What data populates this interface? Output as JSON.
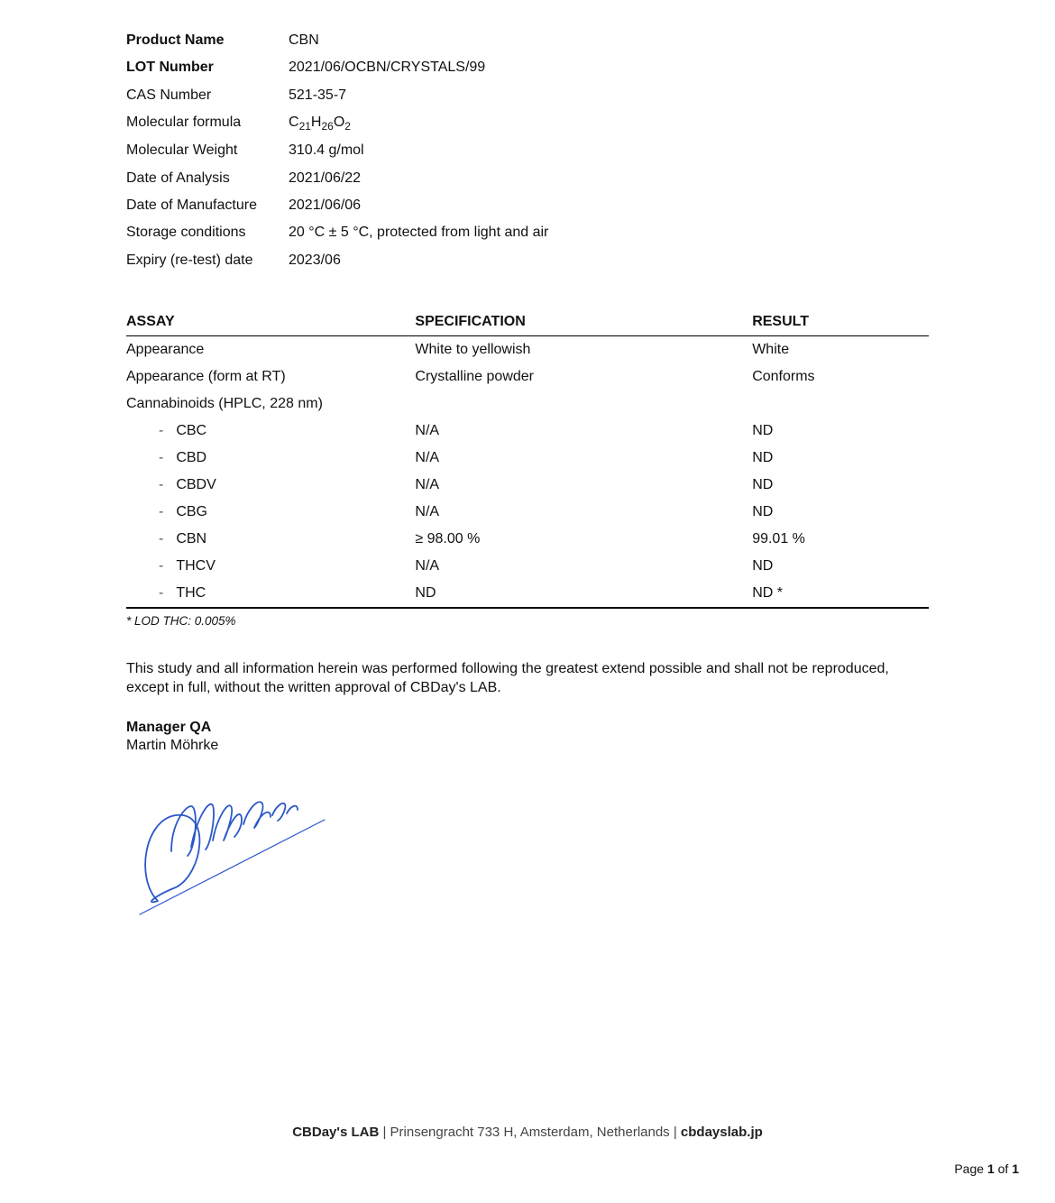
{
  "info": [
    {
      "label": "Product Name",
      "value": "CBN",
      "bold": true
    },
    {
      "label": "LOT Number",
      "value": "2021/06/OCBN/CRYSTALS/99",
      "bold": true
    },
    {
      "label": "CAS Number",
      "value": "521-35-7",
      "bold": false
    },
    {
      "label": "Molecular formula",
      "value": "C21H26O2",
      "bold": false,
      "formula": true
    },
    {
      "label": "Molecular Weight",
      "value": "310.4 g/mol",
      "bold": false
    },
    {
      "label": "Date of Analysis",
      "value": "2021/06/22",
      "bold": false
    },
    {
      "label": "Date of Manufacture",
      "value": "2021/06/06",
      "bold": false
    },
    {
      "label": "Storage conditions",
      "value": "20 °C ± 5 °C, protected from light and air",
      "bold": false
    },
    {
      "label": "Expiry (re-test) date",
      "value": "2023/06",
      "bold": false
    }
  ],
  "table": {
    "headers": {
      "assay": "ASSAY",
      "spec": "SPECIFICATION",
      "result": "RESULT"
    },
    "rows": [
      {
        "assay": "Appearance",
        "spec": "White to yellowish",
        "result": "White",
        "sub": false
      },
      {
        "assay": "Appearance (form at RT)",
        "spec": "Crystalline powder",
        "result": "Conforms",
        "sub": false
      },
      {
        "assay": "Cannabinoids (HPLC, 228 nm)",
        "spec": "",
        "result": "",
        "sub": false
      },
      {
        "assay": "CBC",
        "spec": "N/A",
        "result": "ND",
        "sub": true
      },
      {
        "assay": "CBD",
        "spec": "N/A",
        "result": "ND",
        "sub": true
      },
      {
        "assay": "CBDV",
        "spec": "N/A",
        "result": "ND",
        "sub": true
      },
      {
        "assay": "CBG",
        "spec": "N/A",
        "result": "ND",
        "sub": true
      },
      {
        "assay": "CBN",
        "spec": "≥ 98.00 %",
        "result": "99.01 %",
        "sub": true
      },
      {
        "assay": "THCV",
        "spec": "N/A",
        "result": "ND",
        "sub": true
      },
      {
        "assay": "THC",
        "spec": "ND",
        "result": "ND *",
        "sub": true
      }
    ]
  },
  "footnote": "*  LOD THC: 0.005%",
  "disclaimer": "This study and all information herein was performed following the greatest extend possible and shall not be reproduced, except in full, without the written approval of CBDay's LAB.",
  "signature": {
    "title": "Manager QA",
    "name": "Martin Möhrke"
  },
  "footer": {
    "lab": "CBDay's LAB",
    "sep": " | ",
    "address": "Prinsengracht 733 H, Amsterdam, Netherlands",
    "sep2": " | ",
    "domain": "cbdayslab.jp"
  },
  "pageNum": {
    "prefix": "Page ",
    "current": "1",
    "of": " of ",
    "total": "1"
  },
  "style": {
    "signature_color": "#2b57c8"
  }
}
